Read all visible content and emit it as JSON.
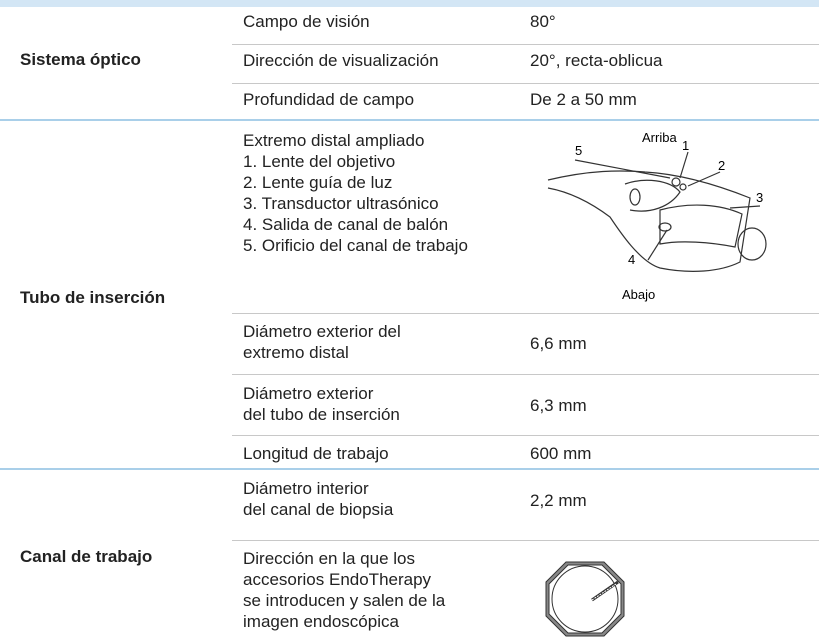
{
  "table": {
    "groups": [
      {
        "label": "Sistema óptico",
        "rows": [
          {
            "parameter": "Campo de visión",
            "value": "80°"
          },
          {
            "parameter": "Dirección de visualización",
            "value": "20°, recta-oblicua"
          },
          {
            "parameter": "Profundidad de campo",
            "value": "De 2 a 50 mm"
          }
        ]
      },
      {
        "label": "Tubo de inserción",
        "rows": [
          {
            "parameter": "Extremo distal ampliado",
            "items": [
              "1. Lente del objetivo",
              "2. Lente guía de luz",
              "3. Transductor ultrasónico",
              "4. Salida de canal de balón",
              "5. Orificio del canal de trabajo"
            ],
            "figure": {
              "top": "Arriba",
              "bottom": "Abajo",
              "callouts": [
                "1",
                "2",
                "3",
                "4",
                "5"
              ]
            }
          },
          {
            "parameter": "Diámetro exterior del\nextremo distal",
            "value": "6,6 mm"
          },
          {
            "parameter": "Diámetro exterior\ndel tubo de inserción",
            "value": "6,3 mm"
          },
          {
            "parameter": "Longitud de trabajo",
            "value": "600 mm"
          }
        ]
      },
      {
        "label": "Canal de trabajo",
        "rows": [
          {
            "parameter": "Diámetro interior\ndel canal de biopsia",
            "value": "2,2 mm"
          },
          {
            "parameter": "Dirección en la que los\naccesorios EndoTherapy\nse introducen y salen de la\nimagen endoscópica"
          }
        ]
      }
    ]
  }
}
